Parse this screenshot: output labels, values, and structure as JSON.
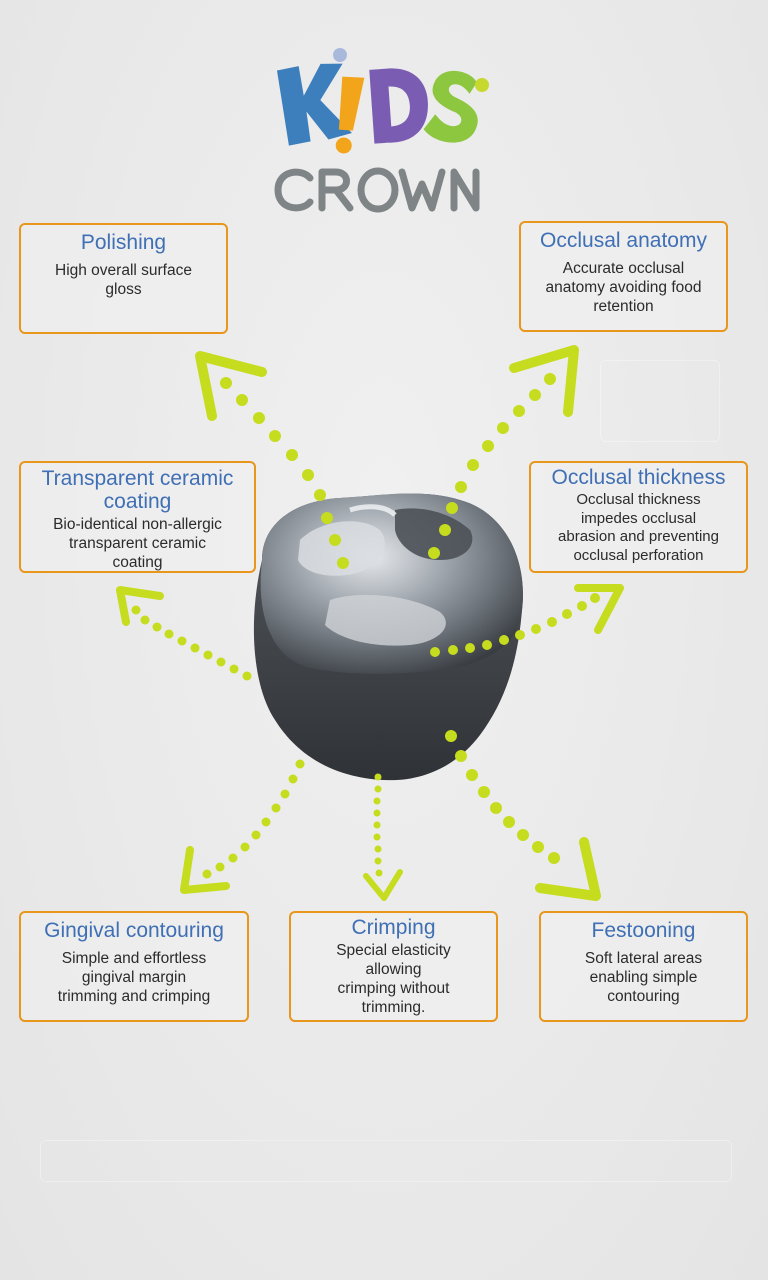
{
  "logo": {
    "letters": [
      "K",
      "!",
      "D",
      "S"
    ],
    "subtitle": "CROWN",
    "colors": {
      "k": "#3d7ebd",
      "i": "#f2a41a",
      "d": "#7a5db3",
      "s": "#8dc63f",
      "dot_blue": "#a9b9dc",
      "dot_green": "#c7d92e",
      "crown": "#7f8486"
    },
    "icon": "kids-crown-logo"
  },
  "features": [
    {
      "id": "polishing",
      "title": "Polishing",
      "description": "High overall surface\ngloss"
    },
    {
      "id": "occlusal-anatomy",
      "title": "Occlusal anatomy",
      "description": "Accurate occlusal\nanatomy avoiding food\nretention"
    },
    {
      "id": "transparent-ceramic-coating",
      "title": "Transparent ceramic\ncoating",
      "description": "Bio-identical non-allergic\ntransparent ceramic\ncoating"
    },
    {
      "id": "occlusal-thickness",
      "title": "Occlusal thickness",
      "description": "Occlusal thickness\nimpedes occlusal\nabrasion and preventing\nocclusal perforation"
    },
    {
      "id": "gingival-contouring",
      "title": "Gingival contouring",
      "description": "Simple and effortless\ngingival  margin\ntrimming and crimping"
    },
    {
      "id": "crimping",
      "title": "Crimping",
      "description": "Special elasticity\nallowing\ncrimping without\ntrimming."
    },
    {
      "id": "festooning",
      "title": "Festooning",
      "description": "Soft lateral areas\nenabling simple\ncontouring"
    }
  ],
  "colors": {
    "card_border": "#e8961c",
    "title_text": "#3f6fb5",
    "arrow": "#c6dc1e",
    "center_image": "steel-crown-tooth"
  }
}
